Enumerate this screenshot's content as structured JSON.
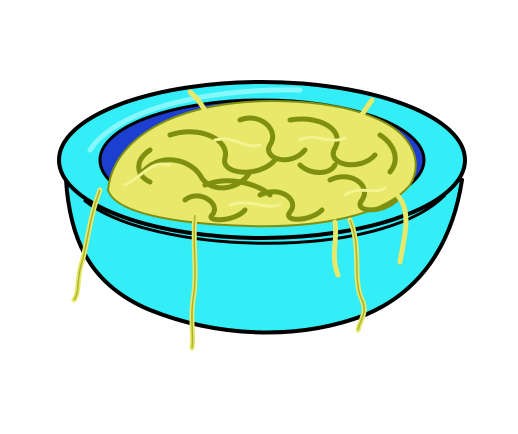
{
  "scene": {
    "subject": "noodle-bowl-clipart",
    "colors": {
      "background": "#ffffff",
      "bowl": "#33eef7",
      "bowl_highlight": "#6ff5fb",
      "bowl_inner": "#1c3fcf",
      "noodles": "#e8e86a",
      "noodle_shadow": "#7f8f10",
      "outline": "#000000"
    }
  }
}
